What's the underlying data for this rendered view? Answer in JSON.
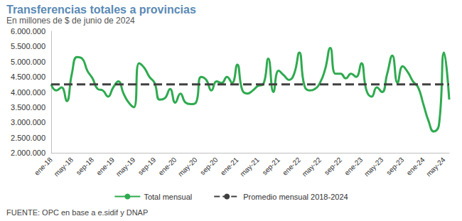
{
  "chart_data": {
    "type": "line",
    "title": "Transferencias totales a provincias",
    "subtitle": "En millones de $ de junio de 2024",
    "source": "FUENTE: OPC en base a e.sidif y DNAP",
    "categories": [
      "ene-18",
      null,
      null,
      null,
      "may-18",
      null,
      null,
      null,
      "sep-18",
      null,
      null,
      null,
      "ene-19",
      null,
      null,
      null,
      "may-19",
      null,
      null,
      null,
      "sep-19",
      null,
      null,
      null,
      "ene-20",
      null,
      null,
      null,
      "may-20",
      null,
      null,
      null,
      "sep-20",
      null,
      null,
      null,
      "ene-21",
      null,
      null,
      null,
      "may-21",
      null,
      null,
      null,
      "sep-21",
      null,
      null,
      null,
      "ene-22",
      null,
      null,
      null,
      "may-22",
      null,
      null,
      null,
      "sep-22",
      null,
      null,
      null,
      "ene-23",
      null,
      null,
      null,
      "may-23",
      null,
      null,
      null,
      "sep-23",
      null,
      null,
      null,
      "ene-24",
      null,
      null,
      null,
      "may-24",
      null
    ],
    "series": [
      {
        "name": "Total mensual",
        "color": "#2eaa4f",
        "line_style": "solid",
        "values": [
          4250000,
          4050000,
          4150000,
          3700000,
          4600000,
          5150000,
          5100000,
          4700000,
          4450000,
          4100000,
          4050000,
          3850000,
          4150000,
          4350000,
          3950000,
          3650000,
          3500000,
          4950000,
          4800000,
          4500000,
          4300000,
          3750000,
          3800000,
          4100000,
          3650000,
          3950000,
          3650000,
          3600000,
          3650000,
          4500000,
          4400000,
          4050000,
          4350000,
          4300000,
          4500000,
          4300000,
          4900000,
          4050000,
          3950000,
          4050000,
          4200000,
          4250000,
          5100000,
          4000000,
          4700000,
          4550000,
          4400000,
          4600000,
          5300000,
          4200000,
          4050000,
          4100000,
          4300000,
          4750000,
          5450000,
          4600000,
          4600000,
          4450000,
          4600000,
          4500000,
          4950000,
          4050000,
          3850000,
          4150000,
          4000000,
          4600000,
          5200000,
          4300000,
          4850000,
          4650000,
          4350000,
          4150000,
          3600000,
          3050000,
          2700000,
          2900000,
          5300000,
          3750000
        ]
      },
      {
        "name": "Promedio mensual 2018-2024",
        "color": "#404040",
        "line_style": "dashed",
        "values": [
          4250000,
          4250000,
          4250000,
          4250000,
          4250000,
          4250000,
          4250000,
          4250000,
          4250000,
          4250000,
          4250000,
          4250000,
          4250000,
          4250000,
          4250000,
          4250000,
          4250000,
          4250000,
          4250000,
          4250000,
          4250000,
          4250000,
          4250000,
          4250000,
          4250000,
          4250000,
          4250000,
          4250000,
          4250000,
          4250000,
          4250000,
          4250000,
          4250000,
          4250000,
          4250000,
          4250000,
          4250000,
          4250000,
          4250000,
          4250000,
          4250000,
          4250000,
          4250000,
          4250000,
          4250000,
          4250000,
          4250000,
          4250000,
          4250000,
          4250000,
          4250000,
          4250000,
          4250000,
          4250000,
          4250000,
          4250000,
          4250000,
          4250000,
          4250000,
          4250000,
          4250000,
          4250000,
          4250000,
          4250000,
          4250000,
          4250000,
          4250000,
          4250000,
          4250000,
          4250000,
          4250000,
          4250000,
          4250000,
          4250000,
          4250000,
          4250000,
          4250000,
          4250000
        ]
      }
    ],
    "ylim": [
      2000000,
      6000000
    ],
    "yticks": [
      {
        "value": 2000000,
        "label": "2.000.000"
      },
      {
        "value": 2500000,
        "label": "2.500.000"
      },
      {
        "value": 3000000,
        "label": "3.000.000"
      },
      {
        "value": 3500000,
        "label": "3.500.000"
      },
      {
        "value": 4000000,
        "label": "4.000.000"
      },
      {
        "value": 4500000,
        "label": "4.500.000"
      },
      {
        "value": 5000000,
        "label": "5.000.000"
      },
      {
        "value": 5500000,
        "label": "5.500.000"
      },
      {
        "value": 6000000,
        "label": "6.000.000"
      }
    ],
    "grid": false,
    "legend": "bottom"
  }
}
